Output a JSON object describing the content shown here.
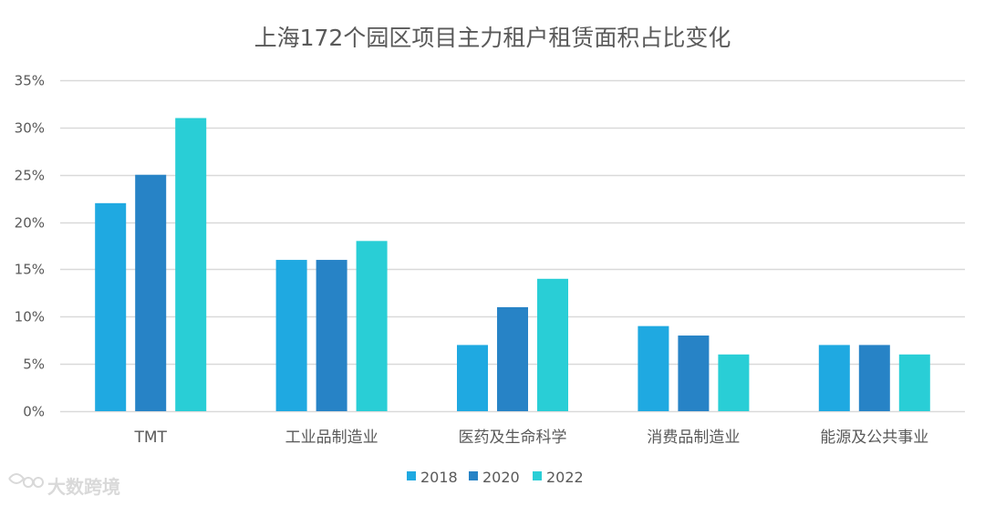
{
  "chart_data": {
    "type": "bar",
    "title": "上海172个园区项目主力租户租赁面积占比变化",
    "categories": [
      "TMT",
      "工业品制造业",
      "医药及生命科学",
      "消费品制造业",
      "能源及公共事业"
    ],
    "series": [
      {
        "name": "2018",
        "values": [
          22,
          16,
          7,
          9,
          7
        ],
        "color": "#1fa9e1"
      },
      {
        "name": "2020",
        "values": [
          25,
          16,
          11,
          8,
          7
        ],
        "color": "#2783c6"
      },
      {
        "name": "2022",
        "values": [
          31,
          18,
          14,
          6,
          6
        ],
        "color": "#29ced6"
      }
    ],
    "ylim": [
      0,
      35
    ],
    "yticks": [
      0,
      5,
      10,
      15,
      20,
      25,
      30,
      35
    ],
    "ytick_labels": [
      "0%",
      "5%",
      "10%",
      "15%",
      "20%",
      "25%",
      "30%",
      "35%"
    ],
    "xlabel": "",
    "ylabel": "",
    "grid": true,
    "legend_position": "bottom-center"
  },
  "watermark": {
    "text": "大数跨境"
  },
  "colors": {
    "grid": "#d9d9d9",
    "axis_text": "#595959",
    "watermark": "#d9d9d9"
  }
}
